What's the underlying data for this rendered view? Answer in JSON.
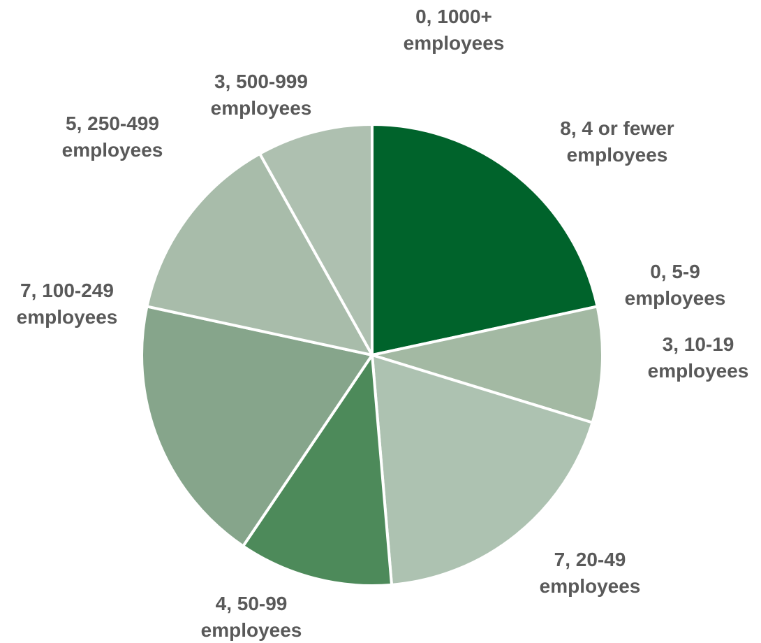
{
  "chart_data": {
    "type": "pie",
    "title": "",
    "slices": [
      {
        "value": 8,
        "category": "4 or fewer employees",
        "label_lines": [
          "8, 4 or fewer",
          "employees"
        ],
        "color": "#00632b"
      },
      {
        "value": 0,
        "category": "5-9 employees",
        "label_lines": [
          "0, 5-9",
          "employees"
        ],
        "color": "#3a7d4f"
      },
      {
        "value": 3,
        "category": "10-19 employees",
        "label_lines": [
          "3, 10-19",
          "employees"
        ],
        "color": "#a3b9a3"
      },
      {
        "value": 7,
        "category": "20-49 employees",
        "label_lines": [
          "7, 20-49",
          "employees"
        ],
        "color": "#adc2b1"
      },
      {
        "value": 4,
        "category": "50-99 employees",
        "label_lines": [
          "4, 50-99",
          "employees"
        ],
        "color": "#4d8a5a"
      },
      {
        "value": 7,
        "category": "100-249 employees",
        "label_lines": [
          "7, 100-249",
          "employees"
        ],
        "color": "#86a58b"
      },
      {
        "value": 5,
        "category": "250-499 employees",
        "label_lines": [
          "5, 250-499",
          "employees"
        ],
        "color": "#a8bcaa"
      },
      {
        "value": 3,
        "category": "500-999 employees",
        "label_lines": [
          "3, 500-999",
          "employees"
        ],
        "color": "#aec0b0"
      },
      {
        "value": 0,
        "category": "1000+ employees",
        "label_lines": [
          "0, 1000+",
          "employees"
        ],
        "color": "#8aa78f"
      }
    ],
    "legend": "none",
    "data_labels": "outside"
  }
}
